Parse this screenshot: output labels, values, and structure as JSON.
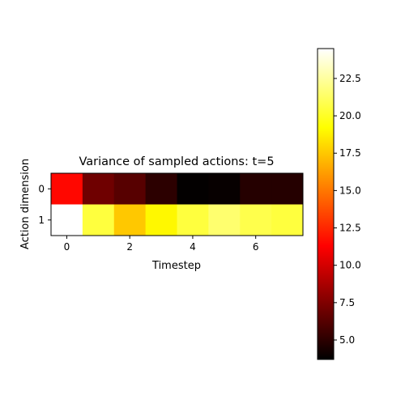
{
  "chart_data": {
    "type": "heatmap",
    "title": "Variance of sampled actions: t=5",
    "xlabel": "Timestep",
    "ylabel": "Action dimension",
    "colormap": "hot",
    "x_ticks": [
      0,
      2,
      4,
      6
    ],
    "y_ticks": [
      0,
      1
    ],
    "rows": [
      0,
      1
    ],
    "columns": [
      0,
      1,
      2,
      3,
      4,
      5,
      6,
      7
    ],
    "values": [
      [
        11.5,
        7.0,
        6.3,
        5.0,
        3.8,
        3.9,
        4.8,
        4.8
      ],
      [
        24.5,
        20.5,
        17.5,
        19.0,
        20.5,
        21.5,
        20.8,
        20.5
      ]
    ],
    "colorbar": {
      "min": 3.7,
      "max": 24.5,
      "ticks": [
        5.0,
        7.5,
        10.0,
        12.5,
        15.0,
        17.5,
        20.0,
        22.5
      ],
      "tick_labels": [
        "5.0",
        "7.5",
        "10.0",
        "12.5",
        "15.0",
        "17.5",
        "20.0",
        "22.5"
      ]
    }
  }
}
